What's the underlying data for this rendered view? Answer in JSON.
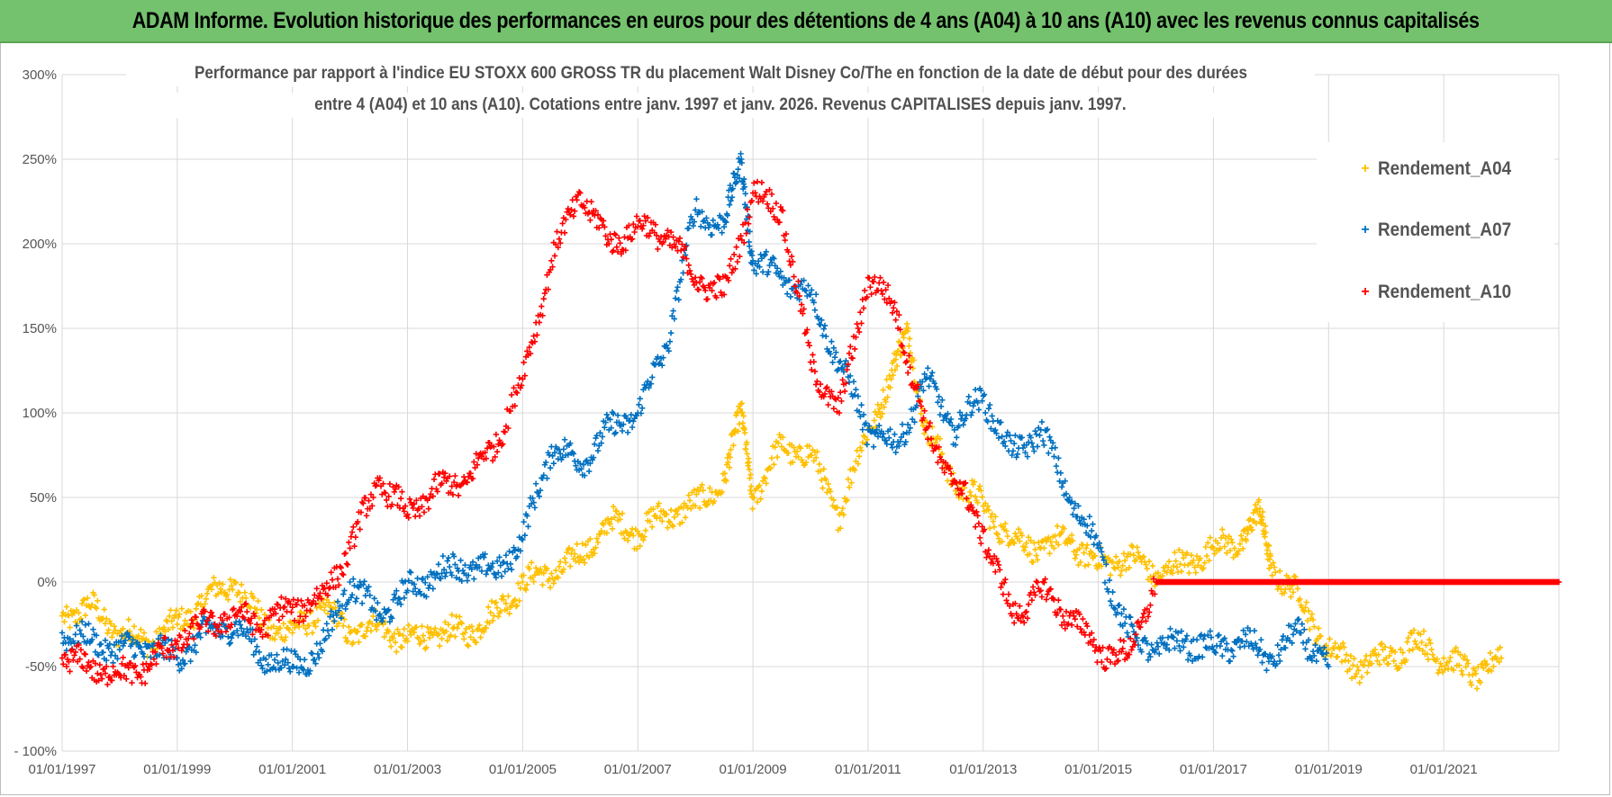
{
  "header": {
    "title": "ADAM Informe. Evolution historique des performances en euros pour des détentions de 4 ans (A04) à 10 ans (A10) avec les revenus connus capitalisés"
  },
  "chart_data": {
    "type": "scatter",
    "title_line1": "Performance par rapport à l'indice EU STOXX 600 GROSS TR  du placement Walt Disney Co/The en fonction de la date de début pour des durées",
    "title_line2": "entre 4 (A04) et 10 ans (A10).  Cotations entre janv. 1997 et janv. 2026. Revenus CAPITALISES  depuis janv. 1997.",
    "xlabel": "",
    "ylabel": "",
    "x_range": [
      1997.0,
      2023.0
    ],
    "ylim": [
      -100,
      300
    ],
    "y_ticks": [
      "300%",
      "250%",
      "200%",
      "150%",
      "100%",
      "50%",
      "0%",
      "-50%",
      "- 100%"
    ],
    "y_tick_values": [
      300,
      250,
      200,
      150,
      100,
      50,
      0,
      -50,
      -100
    ],
    "x_ticks": [
      "01/01/1997",
      "01/01/1999",
      "01/01/2001",
      "01/01/2003",
      "01/01/2005",
      "01/01/2007",
      "01/01/2009",
      "01/01/2011",
      "01/01/2013",
      "01/01/2015",
      "01/01/2017",
      "01/01/2019",
      "01/01/2021"
    ],
    "x_tick_values": [
      1997,
      1999,
      2001,
      2003,
      2005,
      2007,
      2009,
      2011,
      2013,
      2015,
      2017,
      2019,
      2021
    ],
    "legend": {
      "position": "top-right"
    },
    "series": [
      {
        "name": "Rendement_A04",
        "color": "#ffc000",
        "x": [
          1997.0,
          1997.5,
          1998.0,
          1998.5,
          1999.0,
          1999.5,
          2000.0,
          2000.5,
          2001.0,
          2001.5,
          2002.0,
          2002.5,
          2003.0,
          2003.5,
          2004.0,
          2004.5,
          2005.0,
          2005.5,
          2006.0,
          2006.5,
          2007.0,
          2007.5,
          2008.0,
          2008.5,
          2008.8,
          2009.0,
          2009.5,
          2010.0,
          2010.5,
          2011.0,
          2011.4,
          2011.7,
          2012.0,
          2012.5,
          2013.0,
          2013.5,
          2014.0,
          2014.5,
          2015.0,
          2015.5,
          2016.0,
          2016.5,
          2017.0,
          2017.5,
          2017.8,
          2018.0,
          2018.5,
          2019.0,
          2019.5,
          2020.0,
          2020.5,
          2021.0,
          2021.5,
          2022.0
        ],
        "y": [
          -20,
          -15,
          -30,
          -35,
          -25,
          -10,
          0,
          -25,
          -30,
          -15,
          -30,
          -25,
          -35,
          -30,
          -30,
          -20,
          0,
          5,
          15,
          35,
          30,
          40,
          45,
          60,
          100,
          50,
          80,
          75,
          40,
          90,
          120,
          150,
          90,
          60,
          45,
          25,
          20,
          25,
          10,
          15,
          5,
          10,
          20,
          25,
          40,
          10,
          -10,
          -40,
          -50,
          -45,
          -35,
          -45,
          -55,
          -45
        ]
      },
      {
        "name": "Rendement_A07",
        "color": "#0070c0",
        "x": [
          1997.0,
          1997.5,
          1998.0,
          1998.5,
          1999.0,
          1999.5,
          2000.0,
          2000.5,
          2001.0,
          2001.5,
          2002.0,
          2002.5,
          2003.0,
          2003.5,
          2004.0,
          2004.5,
          2005.0,
          2005.5,
          2006.0,
          2006.5,
          2007.0,
          2007.5,
          2008.0,
          2008.5,
          2008.8,
          2009.0,
          2009.5,
          2010.0,
          2010.5,
          2011.0,
          2011.5,
          2012.0,
          2012.5,
          2013.0,
          2013.5,
          2014.0,
          2014.5,
          2015.0,
          2015.5,
          2016.0,
          2016.5,
          2017.0,
          2017.5,
          2018.0,
          2018.5,
          2019.0
        ],
        "y": [
          -30,
          -35,
          -40,
          -38,
          -45,
          -30,
          -25,
          -45,
          -50,
          -40,
          0,
          -20,
          -5,
          5,
          10,
          5,
          25,
          80,
          70,
          90,
          100,
          140,
          220,
          210,
          250,
          190,
          180,
          170,
          130,
          90,
          80,
          120,
          90,
          110,
          75,
          90,
          50,
          20,
          -30,
          -40,
          -35,
          -40,
          -35,
          -45,
          -30,
          -50
        ]
      },
      {
        "name": "Rendement_A10",
        "color": "#ff0000",
        "x": [
          1997.0,
          1997.5,
          1998.0,
          1998.5,
          1999.0,
          1999.5,
          2000.0,
          2000.5,
          2001.0,
          2001.5,
          2002.0,
          2002.5,
          2003.0,
          2003.5,
          2004.0,
          2004.5,
          2005.0,
          2005.5,
          2006.0,
          2006.5,
          2007.0,
          2007.5,
          2008.0,
          2008.5,
          2009.0,
          2009.5,
          2010.0,
          2010.5,
          2011.0,
          2011.5,
          2012.0,
          2012.5,
          2013.0,
          2013.5,
          2014.0,
          2014.5,
          2015.0,
          2015.5,
          2016.0,
          2016.5,
          2017.0,
          2017.5,
          2018.0,
          2018.5,
          2019.0,
          2019.5,
          2020.0,
          2020.5,
          2021.0,
          2021.5,
          2022.0,
          2022.5,
          2023.0
        ],
        "y": [
          -45,
          -50,
          -55,
          -50,
          -35,
          -25,
          -20,
          -25,
          -15,
          -10,
          20,
          60,
          40,
          55,
          60,
          80,
          120,
          190,
          230,
          200,
          210,
          205,
          180,
          170,
          230,
          220,
          130,
          100,
          180,
          160,
          90,
          60,
          30,
          -20,
          -5,
          -20,
          -40,
          -45,
          0,
          0,
          0,
          0,
          0,
          0,
          0,
          0,
          0,
          0,
          0,
          0,
          0,
          0,
          0
        ]
      }
    ]
  }
}
